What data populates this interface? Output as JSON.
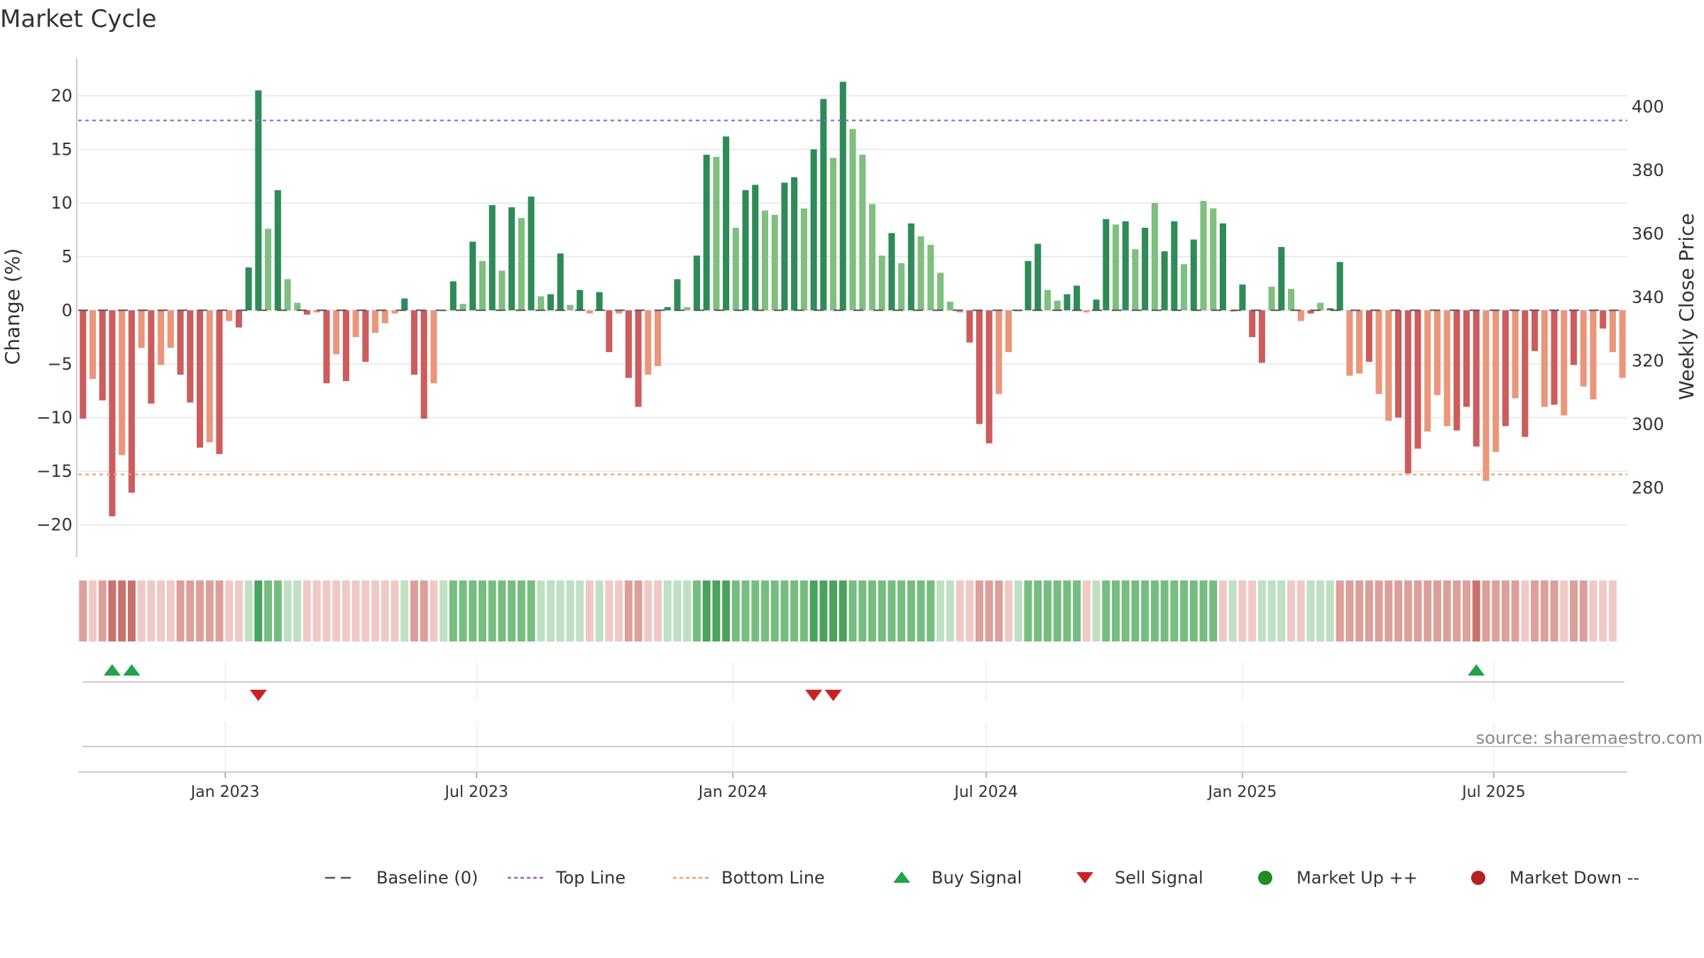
{
  "title": "Market Cycle",
  "source": "source: sharemaestro.com",
  "colors": {
    "strong_up": "#2e8b57",
    "weak_up": "#7fbf7f",
    "strong_down": "#cd5c5c",
    "weak_down": "#e9967a",
    "top_line": "#9467bd",
    "bottom_line": "#f4a261",
    "baseline": "#555555",
    "buy": "#22a34a",
    "sell": "#cc2222",
    "market_up": "#228b22",
    "market_down": "#b22222"
  },
  "legend": [
    {
      "label": "Baseline (0)",
      "kind": "baseline"
    },
    {
      "label": "Top Line",
      "kind": "top"
    },
    {
      "label": "Bottom Line",
      "kind": "bottom"
    },
    {
      "label": "Buy Signal",
      "kind": "buy"
    },
    {
      "label": "Sell Signal",
      "kind": "sell"
    },
    {
      "label": "Market Up ++",
      "kind": "up"
    },
    {
      "label": "Market Down --",
      "kind": "down"
    }
  ],
  "chart_data": {
    "type": "bar",
    "title": "Market Cycle",
    "ylabel": "Change (%)",
    "y2label": "Weekly Close Price",
    "ylim": [
      -23,
      23.5
    ],
    "y2lim": [
      258.2,
      415.3
    ],
    "yticks": [
      -20,
      -15,
      -10,
      -5,
      0,
      5,
      10,
      15,
      20
    ],
    "y2ticks": [
      280,
      300,
      320,
      340,
      360,
      380,
      400
    ],
    "top_line": 17.7,
    "bottom_line": -15.3,
    "baseline": 0,
    "grid": true,
    "x_date_ticks": [
      {
        "label": "Jan 2023",
        "week": 14.6
      },
      {
        "label": "Jul 2023",
        "week": 40.4
      },
      {
        "label": "Jan 2024",
        "week": 66.7
      },
      {
        "label": "Jul 2024",
        "week": 92.7
      },
      {
        "label": "Jan 2025",
        "week": 119
      },
      {
        "label": "Jul 2025",
        "week": 144.8
      }
    ],
    "values": [
      -10.1,
      -6.4,
      -8.4,
      -19.2,
      -13.5,
      -17,
      -3.5,
      -8.7,
      -5.1,
      -3.5,
      -6,
      -8.6,
      -12.8,
      -12.3,
      -13.4,
      -1,
      -1.6,
      4,
      20.5,
      7.6,
      11.2,
      2.9,
      0.7,
      -0.4,
      -0.2,
      -6.8,
      -4.1,
      -6.6,
      -2.5,
      -4.8,
      -2.1,
      -1.2,
      -0.3,
      1.1,
      -6,
      -10.1,
      -6.8,
      0,
      2.7,
      0.6,
      6.4,
      4.6,
      9.8,
      3.7,
      9.6,
      8.6,
      10.6,
      1.3,
      1.5,
      5.3,
      0.5,
      1.9,
      -0.3,
      1.7,
      -3.9,
      -0.3,
      -6.3,
      -9,
      -6,
      -5.2,
      0.3,
      2.9,
      0.3,
      5.1,
      14.5,
      14.3,
      16.2,
      7.7,
      11.2,
      11.7,
      9.3,
      8.9,
      11.9,
      12.4,
      9.5,
      15,
      19.7,
      14.2,
      21.3,
      16.9,
      14.5,
      9.9,
      5.1,
      7.2,
      4.4,
      8.1,
      6.9,
      6.1,
      3.5,
      0.8,
      -0.2,
      -3,
      -10.6,
      -12.4,
      -7.8,
      -3.9,
      0,
      4.6,
      6.2,
      1.9,
      0.9,
      1.5,
      2.3,
      -0.2,
      1,
      8.5,
      8,
      8.3,
      5.7,
      7.7,
      10,
      5.5,
      8.3,
      4.3,
      6.6,
      10.2,
      9.5,
      8.1,
      -0.1,
      2.4,
      -2.5,
      -4.9,
      2.2,
      5.9,
      2,
      -1,
      -0.3,
      0.7,
      0.2,
      4.5,
      -6.1,
      -5.9,
      -4.8,
      -7.8,
      -10.3,
      -10,
      -15.2,
      -12.9,
      -11.3,
      -7.9,
      -10.8,
      -11.2,
      -9,
      -12.7,
      -15.9,
      -13.2,
      -10.8,
      -8.2,
      -11.8,
      -3.8,
      -9,
      -8.8,
      -9.8,
      -5.1,
      -7.1,
      -8.3,
      -1.7,
      -3.9,
      -6.3
    ],
    "strength": [
      "S",
      "W",
      "S",
      "S",
      "W",
      "S",
      "W",
      "S",
      "W",
      "W",
      "S",
      "S",
      "S",
      "W",
      "S",
      "W",
      "S",
      "S",
      "S",
      "W",
      "S",
      "W",
      "W",
      "S",
      "W",
      "S",
      "W",
      "S",
      "W",
      "S",
      "W",
      "W",
      "W",
      "S",
      "S",
      "S",
      "W",
      "W",
      "S",
      "W",
      "S",
      "W",
      "S",
      "W",
      "S",
      "W",
      "S",
      "W",
      "S",
      "S",
      "W",
      "S",
      "W",
      "S",
      "S",
      "W",
      "S",
      "S",
      "W",
      "W",
      "S",
      "S",
      "W",
      "S",
      "S",
      "W",
      "S",
      "W",
      "S",
      "S",
      "W",
      "W",
      "S",
      "S",
      "W",
      "S",
      "S",
      "W",
      "S",
      "W",
      "W",
      "W",
      "W",
      "S",
      "W",
      "S",
      "W",
      "W",
      "W",
      "W",
      "W",
      "S",
      "S",
      "S",
      "W",
      "W",
      "S",
      "S",
      "S",
      "W",
      "W",
      "S",
      "S",
      "W",
      "S",
      "S",
      "W",
      "S",
      "W",
      "S",
      "W",
      "S",
      "S",
      "W",
      "S",
      "W",
      "W",
      "S",
      "S",
      "S",
      "S",
      "S",
      "W",
      "S",
      "W",
      "W",
      "S",
      "W",
      "S",
      "S",
      "W",
      "W",
      "S",
      "W",
      "W",
      "S",
      "S",
      "S",
      "W",
      "W",
      "W",
      "S",
      "S",
      "S",
      "W",
      "W",
      "S",
      "W",
      "S",
      "S",
      "W",
      "S",
      "W",
      "S",
      "W",
      "W",
      "S"
    ],
    "regime": [
      -2,
      -1,
      -2,
      -3,
      -3,
      -3,
      -1,
      -1,
      -1,
      -1,
      -2,
      -2,
      -2,
      -2,
      -2,
      -1,
      -1,
      1,
      3,
      2,
      2,
      1,
      1,
      -1,
      -1,
      -1,
      -1,
      -1,
      -1,
      -1,
      -1,
      -1,
      -1,
      1,
      -2,
      -2,
      -1,
      1,
      2,
      2,
      2,
      2,
      2,
      2,
      2,
      2,
      2,
      1,
      1,
      1,
      1,
      1,
      -1,
      1,
      -1,
      -1,
      -2,
      -2,
      -1,
      -1,
      1,
      1,
      1,
      2,
      3,
      3,
      3,
      2,
      2,
      2,
      2,
      2,
      2,
      2,
      2,
      3,
      3,
      3,
      3,
      2,
      2,
      2,
      2,
      2,
      2,
      2,
      2,
      2,
      1,
      1,
      -1,
      -1,
      -2,
      -2,
      -2,
      -1,
      1,
      2,
      2,
      2,
      2,
      2,
      2,
      -1,
      1,
      2,
      2,
      2,
      2,
      2,
      2,
      2,
      2,
      2,
      2,
      2,
      2,
      -1,
      1,
      -1,
      -1,
      1,
      1,
      1,
      -1,
      -1,
      1,
      1,
      1,
      -2,
      -2,
      -2,
      -2,
      -2,
      -2,
      -2,
      -2,
      -2,
      -2,
      -2,
      -2,
      -2,
      -2,
      -3,
      -2,
      -2,
      -2,
      -2,
      -1,
      -2,
      -2,
      -2,
      -1,
      -2,
      -2,
      -1,
      -1,
      -1
    ],
    "buy_signals": [
      3,
      5,
      143
    ],
    "sell_signals": [
      18,
      75,
      77
    ]
  }
}
